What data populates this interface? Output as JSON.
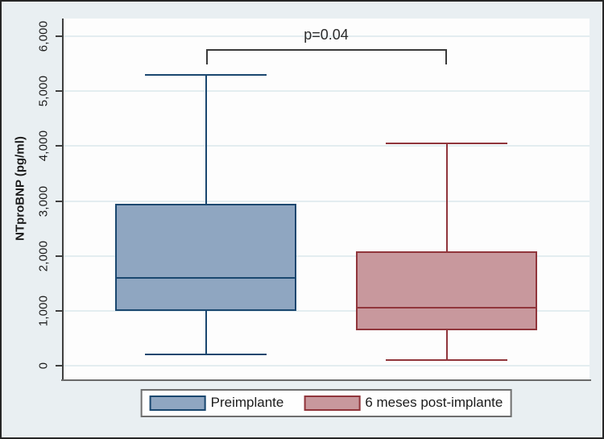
{
  "chart_data": {
    "type": "box",
    "title": "",
    "ylabel": "NTproBNP (pg/ml)",
    "xlabel": "",
    "ylim": [
      0,
      6000
    ],
    "yticks": [
      0,
      1000,
      2000,
      3000,
      4000,
      5000,
      6000
    ],
    "ytick_labels": [
      "0",
      "1,000",
      "2,000",
      "3,000",
      "4,000",
      "5,000",
      "6,000"
    ],
    "grid": true,
    "legend_position": "bottom",
    "annotation": {
      "text": "p=0.04",
      "between": [
        "Preimplante",
        "6 meses post-implante"
      ]
    },
    "series": [
      {
        "name": "Preimplante",
        "fill": "#8fa6c1",
        "stroke": "#1a476f",
        "whisker_low": 200,
        "q1": 1000,
        "median": 1600,
        "q3": 2950,
        "whisker_high": 5300
      },
      {
        "name": "6 meses post-implante",
        "fill": "#c8989d",
        "stroke": "#90353b",
        "whisker_low": 100,
        "q1": 650,
        "median": 1060,
        "q3": 2080,
        "whisker_high": 4050
      }
    ],
    "colors": {
      "background": "#e9eff2",
      "plot_background": "#fdfdfd",
      "gridline": "#e3edf0",
      "axis": "#3f3f3f",
      "text": "#1c1c1c",
      "bracket": "#3a3a3a",
      "legend_border": "#6e6e6e",
      "legend_background": "#fefefe",
      "outer_border": "#262626"
    }
  }
}
